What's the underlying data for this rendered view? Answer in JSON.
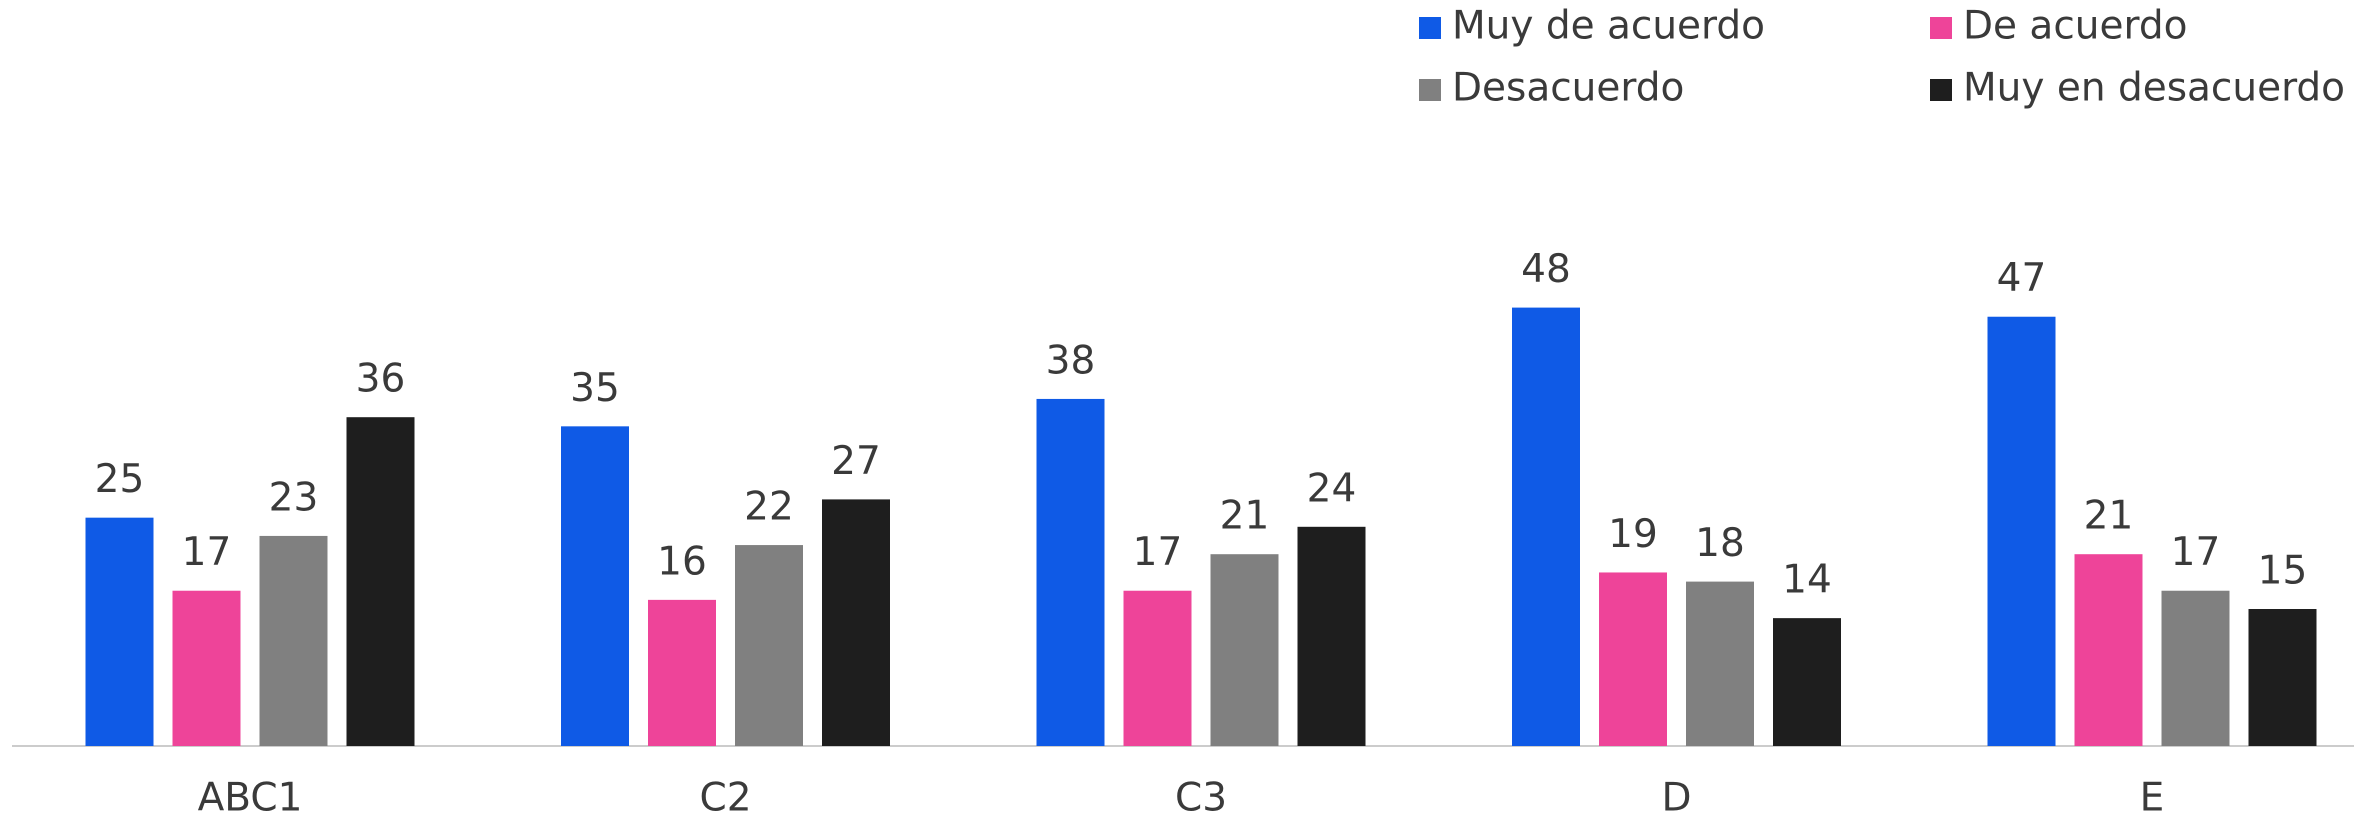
{
  "chart_data": {
    "type": "bar",
    "categories": [
      "ABC1",
      "C2",
      "C3",
      "D",
      "E"
    ],
    "series": [
      {
        "name": "Muy de acuerdo",
        "color": "#0f5ae6",
        "values": [
          25,
          35,
          38,
          48,
          47
        ]
      },
      {
        "name": "De acuerdo",
        "color": "#ee4499",
        "values": [
          17,
          16,
          17,
          19,
          21
        ]
      },
      {
        "name": "Desacuerdo",
        "color": "#808080",
        "values": [
          23,
          22,
          21,
          18,
          17
        ]
      },
      {
        "name": "Muy en desacuerdo",
        "color": "#1e1e1e",
        "values": [
          36,
          27,
          24,
          14,
          15
        ]
      }
    ],
    "ylim": [
      0,
      60
    ],
    "legend": "top-right"
  }
}
